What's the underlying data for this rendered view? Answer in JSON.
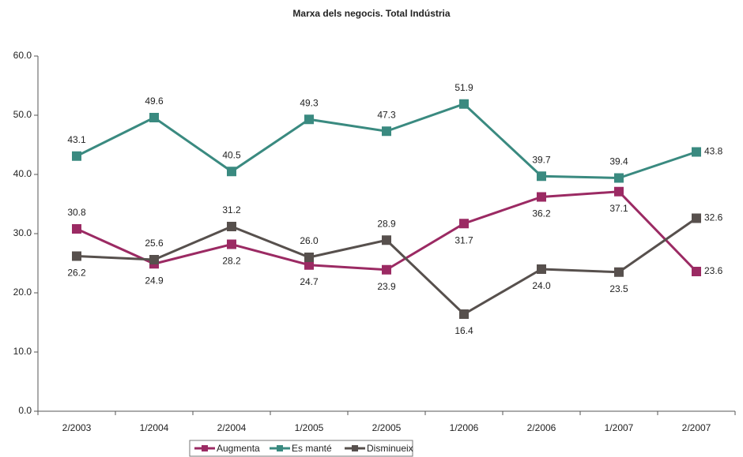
{
  "chart_data": {
    "type": "line",
    "title": "Marxa dels negocis. Total Indústria",
    "categories": [
      "2/2003",
      "1/2004",
      "2/2004",
      "1/2005",
      "2/2005",
      "1/2006",
      "2/2006",
      "1/2007",
      "2/2007"
    ],
    "series": [
      {
        "name": "Augmenta",
        "color": "#9b2a63",
        "values": [
          30.8,
          24.9,
          28.2,
          24.7,
          23.9,
          31.7,
          36.2,
          37.1,
          23.6
        ],
        "value_labels": [
          "30.8",
          "24.9",
          "28.2",
          "24.7",
          "23.9",
          "31.7",
          "36.2",
          "37.1",
          "23.6"
        ]
      },
      {
        "name": "Es manté",
        "color": "#3a8a80",
        "values": [
          43.1,
          49.6,
          40.5,
          49.3,
          47.3,
          51.9,
          39.7,
          39.4,
          43.8
        ],
        "value_labels": [
          "43.1",
          "49.6",
          "40.5",
          "49.3",
          "47.3",
          "51.9",
          "39.7",
          "39.4",
          "43.8"
        ]
      },
      {
        "name": "Disminueix",
        "color": "#57504d",
        "values": [
          26.2,
          25.6,
          31.2,
          26.0,
          28.9,
          16.4,
          24.0,
          23.5,
          32.6
        ],
        "value_labels": [
          "26.2",
          "25.6",
          "31.2",
          "26.0",
          "28.9",
          "16.4",
          "24.0",
          "23.5",
          "32.6"
        ]
      }
    ],
    "ylim": [
      0,
      60
    ],
    "yticks": [
      {
        "value": 0,
        "label": "0.0"
      },
      {
        "value": 10,
        "label": "10.0"
      },
      {
        "value": 20,
        "label": "20.0"
      },
      {
        "value": 30,
        "label": "30.0"
      },
      {
        "value": 40,
        "label": "40.0"
      },
      {
        "value": 50,
        "label": "50.0"
      },
      {
        "value": 60,
        "label": "60.0"
      }
    ]
  }
}
